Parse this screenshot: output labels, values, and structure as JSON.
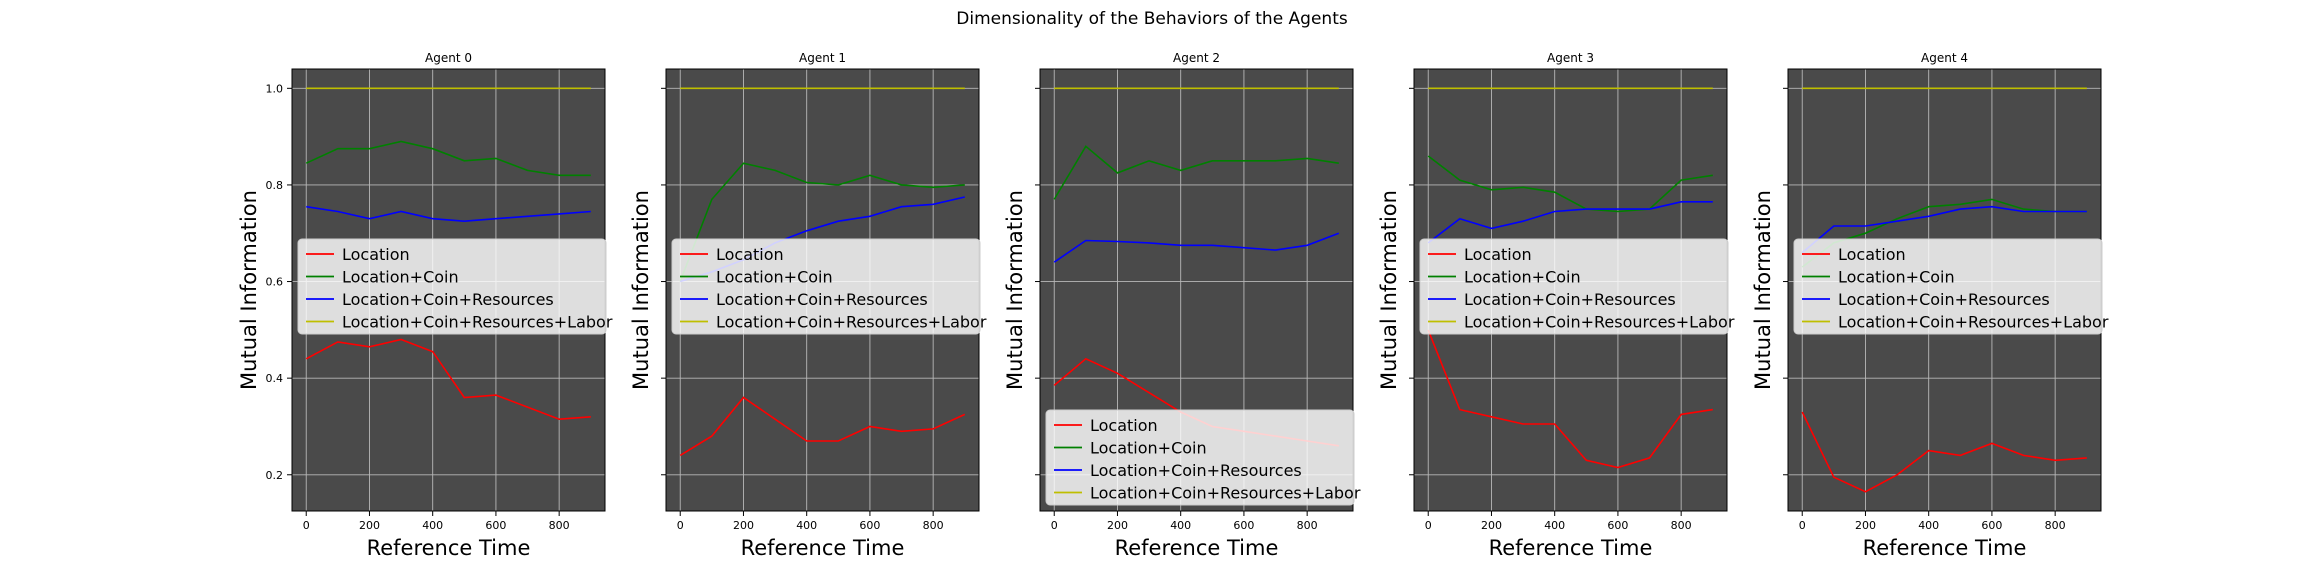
{
  "figure": {
    "title": "Dimensionality of the Behaviors of the Agents"
  },
  "chart_data": [
    {
      "type": "line",
      "title": "Agent 0",
      "xlabel": "Reference Time",
      "ylabel": "Mutual Information",
      "xlim": [
        -45,
        945
      ],
      "ylim": [
        0.125,
        1.04
      ],
      "xticks": [
        0,
        200,
        400,
        600,
        800
      ],
      "yticks": [
        0.2,
        0.4,
        0.6,
        0.8,
        1.0
      ],
      "show_yticklabels": true,
      "grid": true,
      "legend_position": "center-left",
      "x": [
        0,
        100,
        200,
        300,
        400,
        500,
        600,
        700,
        800,
        900
      ],
      "series": [
        {
          "name": "Location",
          "color": "#ff0000",
          "values": [
            0.44,
            0.475,
            0.465,
            0.48,
            0.455,
            0.36,
            0.365,
            0.34,
            0.315,
            0.32
          ]
        },
        {
          "name": "Location+Coin",
          "color": "#008000",
          "values": [
            0.845,
            0.875,
            0.875,
            0.89,
            0.875,
            0.85,
            0.855,
            0.83,
            0.82,
            0.82
          ]
        },
        {
          "name": "Location+Coin+Resources",
          "color": "#0000ff",
          "values": [
            0.755,
            0.745,
            0.73,
            0.745,
            0.73,
            0.725,
            0.73,
            0.735,
            0.74,
            0.745
          ]
        },
        {
          "name": "Location+Coin+Resources+Labor",
          "color": "#bfbf00",
          "values": [
            1.0,
            1.0,
            1.0,
            1.0,
            1.0,
            1.0,
            1.0,
            1.0,
            1.0,
            1.0
          ]
        }
      ]
    },
    {
      "type": "line",
      "title": "Agent 1",
      "xlabel": "Reference Time",
      "ylabel": "Mutual Information",
      "xlim": [
        -45,
        945
      ],
      "ylim": [
        0.125,
        1.04
      ],
      "xticks": [
        0,
        200,
        400,
        600,
        800
      ],
      "yticks": [
        0.2,
        0.4,
        0.6,
        0.8,
        1.0
      ],
      "show_yticklabels": false,
      "grid": true,
      "legend_position": "center-left",
      "x": [
        0,
        100,
        200,
        300,
        400,
        500,
        600,
        700,
        800,
        900
      ],
      "series": [
        {
          "name": "Location",
          "color": "#ff0000",
          "values": [
            0.24,
            0.28,
            0.36,
            0.315,
            0.27,
            0.27,
            0.3,
            0.29,
            0.295,
            0.325
          ]
        },
        {
          "name": "Location+Coin",
          "color": "#008000",
          "values": [
            0.6,
            0.77,
            0.845,
            0.83,
            0.805,
            0.8,
            0.82,
            0.8,
            0.795,
            0.8
          ]
        },
        {
          "name": "Location+Coin+Resources",
          "color": "#0000ff",
          "values": [
            0.6,
            0.62,
            0.645,
            0.68,
            0.705,
            0.725,
            0.735,
            0.755,
            0.76,
            0.775
          ]
        },
        {
          "name": "Location+Coin+Resources+Labor",
          "color": "#bfbf00",
          "values": [
            1.0,
            1.0,
            1.0,
            1.0,
            1.0,
            1.0,
            1.0,
            1.0,
            1.0,
            1.0
          ]
        }
      ]
    },
    {
      "type": "line",
      "title": "Agent 2",
      "xlabel": "Reference Time",
      "ylabel": "Mutual Information",
      "xlim": [
        -45,
        945
      ],
      "ylim": [
        0.125,
        1.04
      ],
      "xticks": [
        0,
        200,
        400,
        600,
        800
      ],
      "yticks": [
        0.2,
        0.4,
        0.6,
        0.8,
        1.0
      ],
      "show_yticklabels": false,
      "grid": true,
      "legend_position": "lower-left",
      "x": [
        0,
        100,
        200,
        300,
        400,
        500,
        600,
        700,
        800,
        900
      ],
      "series": [
        {
          "name": "Location",
          "color": "#ff0000",
          "values": [
            0.385,
            0.44,
            0.41,
            0.37,
            0.33,
            0.3,
            0.29,
            0.28,
            0.27,
            0.26
          ]
        },
        {
          "name": "Location+Coin",
          "color": "#008000",
          "values": [
            0.77,
            0.88,
            0.825,
            0.85,
            0.83,
            0.85,
            0.85,
            0.85,
            0.855,
            0.845
          ]
        },
        {
          "name": "Location+Coin+Resources",
          "color": "#0000ff",
          "values": [
            0.64,
            0.685,
            0.683,
            0.68,
            0.675,
            0.675,
            0.67,
            0.665,
            0.675,
            0.7
          ]
        },
        {
          "name": "Location+Coin+Resources+Labor",
          "color": "#bfbf00",
          "values": [
            1.0,
            1.0,
            1.0,
            1.0,
            1.0,
            1.0,
            1.0,
            1.0,
            1.0,
            1.0
          ]
        }
      ]
    },
    {
      "type": "line",
      "title": "Agent 3",
      "xlabel": "Reference Time",
      "ylabel": "Mutual Information",
      "xlim": [
        -45,
        945
      ],
      "ylim": [
        0.125,
        1.04
      ],
      "xticks": [
        0,
        200,
        400,
        600,
        800
      ],
      "yticks": [
        0.2,
        0.4,
        0.6,
        0.8,
        1.0
      ],
      "show_yticklabels": false,
      "grid": true,
      "legend_position": "center-left",
      "x": [
        0,
        100,
        200,
        300,
        400,
        500,
        600,
        700,
        800,
        900
      ],
      "series": [
        {
          "name": "Location",
          "color": "#ff0000",
          "values": [
            0.5,
            0.335,
            0.32,
            0.305,
            0.305,
            0.23,
            0.215,
            0.235,
            0.325,
            0.335
          ]
        },
        {
          "name": "Location+Coin",
          "color": "#008000",
          "values": [
            0.86,
            0.81,
            0.79,
            0.795,
            0.785,
            0.75,
            0.745,
            0.75,
            0.81,
            0.82
          ]
        },
        {
          "name": "Location+Coin+Resources",
          "color": "#0000ff",
          "values": [
            0.68,
            0.73,
            0.71,
            0.725,
            0.745,
            0.75,
            0.75,
            0.75,
            0.765,
            0.765
          ]
        },
        {
          "name": "Location+Coin+Resources+Labor",
          "color": "#bfbf00",
          "values": [
            1.0,
            1.0,
            1.0,
            1.0,
            1.0,
            1.0,
            1.0,
            1.0,
            1.0,
            1.0
          ]
        }
      ]
    },
    {
      "type": "line",
      "title": "Agent 4",
      "xlabel": "Reference Time",
      "ylabel": "Mutual Information",
      "xlim": [
        -45,
        945
      ],
      "ylim": [
        0.125,
        1.04
      ],
      "xticks": [
        0,
        200,
        400,
        600,
        800
      ],
      "yticks": [
        0.2,
        0.4,
        0.6,
        0.8,
        1.0
      ],
      "show_yticklabels": false,
      "grid": true,
      "legend_position": "center-left",
      "x": [
        0,
        100,
        200,
        300,
        400,
        500,
        600,
        700,
        800,
        900
      ],
      "series": [
        {
          "name": "Location",
          "color": "#ff0000",
          "values": [
            0.33,
            0.195,
            0.165,
            0.2,
            0.25,
            0.24,
            0.265,
            0.24,
            0.23,
            0.235
          ]
        },
        {
          "name": "Location+Coin",
          "color": "#008000",
          "values": [
            0.63,
            0.68,
            0.7,
            0.73,
            0.755,
            0.76,
            0.77,
            0.75,
            0.745,
            0.745
          ]
        },
        {
          "name": "Location+Coin+Resources",
          "color": "#0000ff",
          "values": [
            0.66,
            0.715,
            0.715,
            0.725,
            0.735,
            0.75,
            0.755,
            0.745,
            0.745,
            0.745
          ]
        },
        {
          "name": "Location+Coin+Resources+Labor",
          "color": "#bfbf00",
          "values": [
            1.0,
            1.0,
            1.0,
            1.0,
            1.0,
            1.0,
            1.0,
            1.0,
            1.0,
            1.0
          ]
        }
      ]
    }
  ]
}
